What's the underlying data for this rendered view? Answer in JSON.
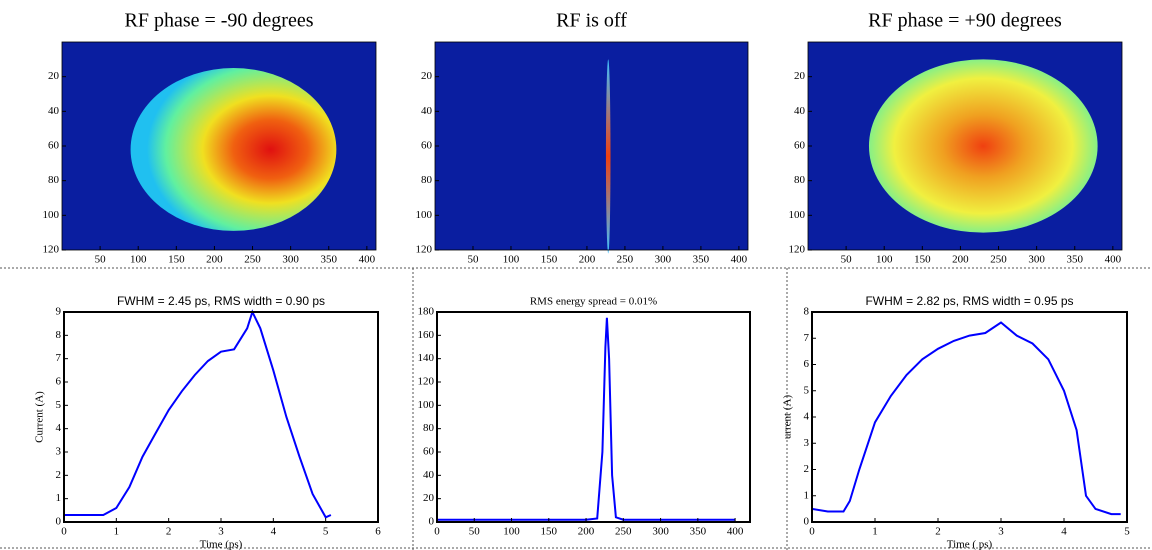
{
  "chart_data": [
    {
      "type": "heatmap",
      "title": "RF phase = -90 degrees",
      "xlim": [
        0,
        412
      ],
      "ylim": [
        0,
        120
      ],
      "xticks": [
        50,
        100,
        150,
        200,
        250,
        300,
        350,
        400
      ],
      "yticks": [
        20,
        40,
        60,
        80,
        100,
        120
      ]
    },
    {
      "type": "heatmap",
      "title": "RF is off",
      "xlim": [
        0,
        412
      ],
      "ylim": [
        0,
        120
      ],
      "xticks": [
        50,
        100,
        150,
        200,
        250,
        300,
        350,
        400
      ],
      "yticks": [
        20,
        40,
        60,
        80,
        100,
        120
      ]
    },
    {
      "type": "heatmap",
      "title": "RF phase = +90 degrees",
      "xlim": [
        0,
        412
      ],
      "ylim": [
        0,
        120
      ],
      "xticks": [
        50,
        100,
        150,
        200,
        250,
        300,
        350,
        400
      ],
      "yticks": [
        20,
        40,
        60,
        80,
        100,
        120
      ]
    },
    {
      "type": "line",
      "title": "FWHM = 2.45 ps, RMS width = 0.90 ps",
      "x_label": "Time (ps)",
      "y_label": "Current (A)",
      "color": "#0000ff",
      "x": [
        0,
        0.25,
        0.5,
        0.75,
        1.0,
        1.25,
        1.5,
        1.75,
        2.0,
        2.25,
        2.5,
        2.75,
        3.0,
        3.25,
        3.5,
        3.6,
        3.75,
        4.0,
        4.25,
        4.5,
        4.75,
        5.0,
        5.1
      ],
      "values": [
        0.3,
        0.3,
        0.3,
        0.3,
        0.6,
        1.5,
        2.8,
        3.8,
        4.8,
        5.6,
        6.3,
        6.9,
        7.3,
        7.4,
        8.3,
        9.0,
        8.3,
        6.5,
        4.5,
        2.8,
        1.2,
        0.2,
        0.3
      ],
      "xlim": [
        0,
        6
      ],
      "ylim": [
        0,
        9
      ],
      "xticks": [
        0,
        1,
        2,
        3,
        4,
        5,
        6
      ],
      "yticks": [
        0,
        1,
        2,
        3,
        4,
        5,
        6,
        7,
        8,
        9
      ]
    },
    {
      "type": "line",
      "title": "RMS energy spread = 0.01%",
      "color": "#0000ff",
      "x": [
        0,
        50,
        100,
        150,
        200,
        215,
        222,
        226,
        228,
        231,
        235,
        240,
        250,
        300,
        350,
        400
      ],
      "values": [
        2,
        2,
        2,
        2,
        2,
        3,
        60,
        150,
        175,
        140,
        40,
        4,
        2,
        2,
        2,
        2
      ],
      "xlim": [
        0,
        420
      ],
      "ylim": [
        0,
        180
      ],
      "xticks": [
        0,
        50,
        100,
        150,
        200,
        250,
        300,
        350,
        400
      ],
      "yticks": [
        0,
        20,
        40,
        60,
        80,
        100,
        120,
        140,
        160,
        180
      ]
    },
    {
      "type": "line",
      "title": "FWHM = 2.82 ps, RMS width = 0.95 ps",
      "x_label": "Time (  ps)",
      "y_label": "urrent (A)",
      "color": "#0000ff",
      "x": [
        0,
        0.25,
        0.5,
        0.6,
        0.75,
        1.0,
        1.25,
        1.5,
        1.75,
        2.0,
        2.25,
        2.5,
        2.75,
        3.0,
        3.25,
        3.5,
        3.75,
        4.0,
        4.2,
        4.35,
        4.5,
        4.75,
        4.9
      ],
      "values": [
        0.5,
        0.4,
        0.4,
        0.8,
        2.0,
        3.8,
        4.8,
        5.6,
        6.2,
        6.6,
        6.9,
        7.1,
        7.2,
        7.6,
        7.1,
        6.8,
        6.2,
        5.0,
        3.5,
        1.0,
        0.5,
        0.3,
        0.3
      ],
      "xlim": [
        0,
        5
      ],
      "ylim": [
        0,
        8
      ],
      "xticks": [
        0,
        1,
        2,
        3,
        4,
        5
      ],
      "yticks": [
        0,
        1,
        2,
        3,
        4,
        5,
        6,
        7,
        8
      ]
    }
  ]
}
